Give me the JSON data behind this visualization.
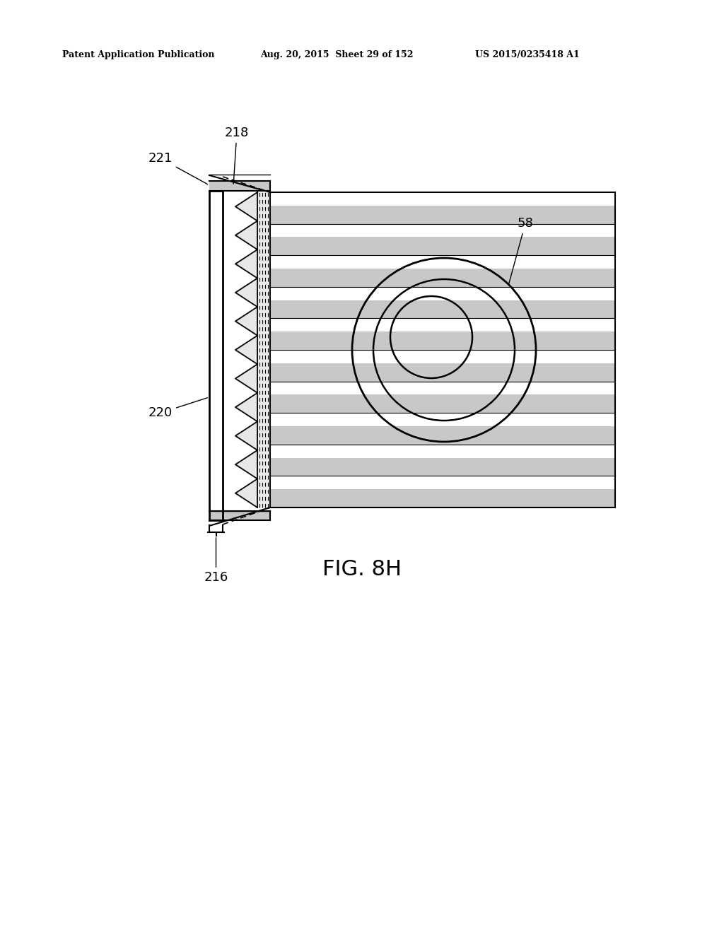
{
  "bg_color": "#ffffff",
  "header_text1": "Patent Application Publication",
  "header_text2": "Aug. 20, 2015  Sheet 29 of 152",
  "header_text3": "US 2015/0235418 A1",
  "fig_label": "FIG. 8H",
  "label_218": "218",
  "label_221": "221",
  "label_220": "220",
  "label_216": "216",
  "label_58": "58",
  "line_color": "#000000",
  "stripe_gray": "#c8c8c8",
  "stripe_dot": "#d0d0d0"
}
